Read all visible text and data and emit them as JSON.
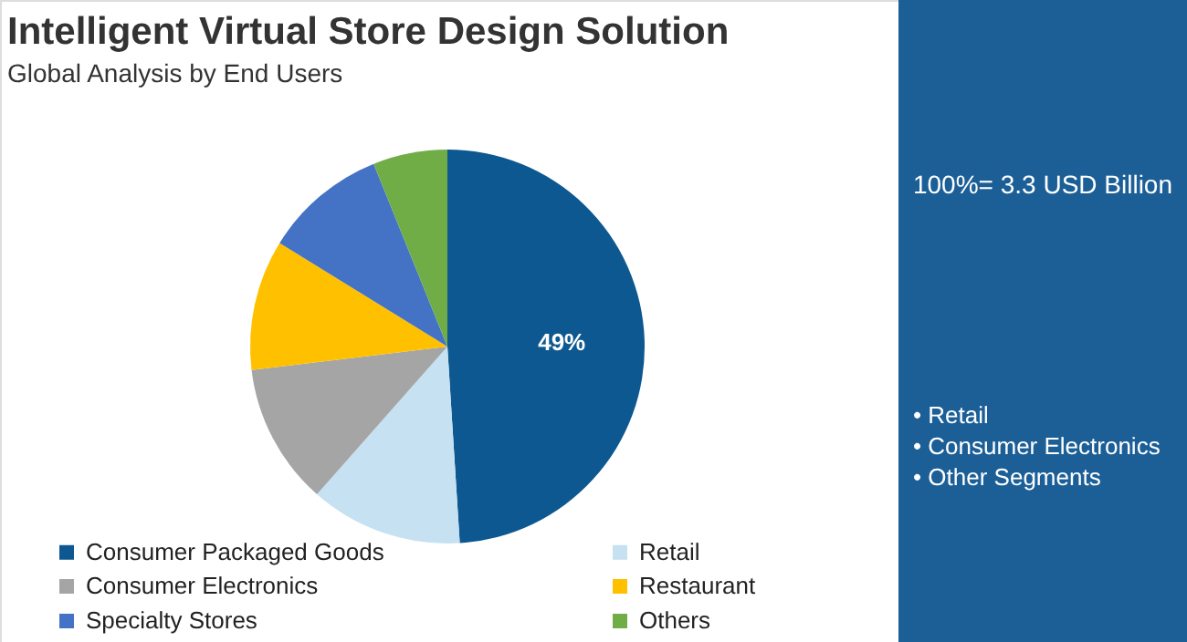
{
  "chart_data": {
    "type": "pie",
    "title": "Intelligent Virtual Store Design Solution",
    "subtitle": "Global Analysis by End Users",
    "categories": [
      "Consumer Packaged Goods",
      "Retail",
      "Consumer Electronics",
      "Restaurant",
      "Specialty Stores",
      "Others"
    ],
    "values": [
      49,
      12.5,
      11.6,
      10.7,
      10.1,
      6.1
    ],
    "colors": [
      "#0d5890",
      "#c5e1f2",
      "#a5a5a5",
      "#ffc000",
      "#4472c4",
      "#70ad47"
    ],
    "value_labels": [
      "49%",
      null,
      null,
      null,
      null,
      null
    ],
    "legend": "bottom",
    "annotations": [
      "100%= 3.3 USD Billion",
      "• Retail",
      "• Consumer Electronics",
      "• Other Segments"
    ]
  }
}
